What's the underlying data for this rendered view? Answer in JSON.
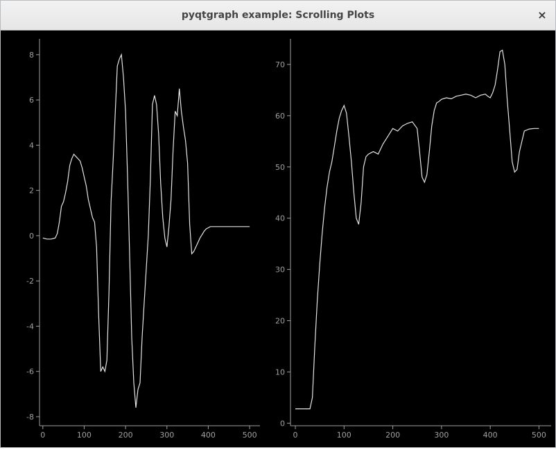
{
  "window": {
    "title": "pyqtgraph example: Scrolling Plots",
    "close_glyph": "×"
  },
  "chart_data": [
    {
      "type": "line",
      "title": "",
      "xlabel": "",
      "ylabel": "",
      "xlim": [
        -8,
        525
      ],
      "ylim": [
        -8.4,
        8.7
      ],
      "xticks": [
        0,
        100,
        200,
        300,
        400,
        500
      ],
      "yticks": [
        -8,
        -6,
        -4,
        -2,
        0,
        2,
        4,
        6,
        8
      ],
      "line_color": "#e6e6e6",
      "grid": false,
      "x": [
        0,
        10,
        20,
        30,
        35,
        40,
        45,
        50,
        55,
        60,
        65,
        70,
        75,
        80,
        85,
        90,
        95,
        100,
        105,
        110,
        115,
        120,
        125,
        130,
        135,
        140,
        145,
        150,
        155,
        160,
        165,
        170,
        175,
        180,
        185,
        190,
        195,
        200,
        205,
        210,
        215,
        220,
        225,
        230,
        235,
        240,
        245,
        250,
        255,
        260,
        265,
        270,
        275,
        280,
        285,
        290,
        295,
        300,
        305,
        310,
        315,
        320,
        325,
        330,
        335,
        340,
        345,
        350,
        355,
        360,
        365,
        370,
        375,
        380,
        385,
        390,
        395,
        400,
        405,
        410,
        415,
        420,
        425,
        430,
        435,
        440,
        445,
        450,
        460,
        470,
        480,
        490,
        500
      ],
      "values": [
        -0.1,
        -0.15,
        -0.15,
        -0.1,
        0.1,
        0.6,
        1.3,
        1.5,
        1.9,
        2.4,
        3.1,
        3.4,
        3.6,
        3.5,
        3.4,
        3.3,
        3.0,
        2.6,
        2.2,
        1.6,
        1.2,
        0.8,
        0.6,
        -0.5,
        -3.5,
        -6.0,
        -5.8,
        -6.0,
        -5.5,
        -2.5,
        1.5,
        3.3,
        5.4,
        7.5,
        7.8,
        8.0,
        7.0,
        5.5,
        2.5,
        -1.0,
        -4.5,
        -6.5,
        -7.6,
        -6.8,
        -6.5,
        -4.5,
        -3.0,
        -1.5,
        0.0,
        2.5,
        5.8,
        6.2,
        5.8,
        4.5,
        2.3,
        0.8,
        -0.1,
        -0.5,
        0.4,
        1.6,
        3.8,
        5.5,
        5.3,
        6.5,
        5.5,
        4.8,
        4.2,
        3.2,
        0.5,
        -0.8,
        -0.7,
        -0.5,
        -0.3,
        -0.1,
        0.05,
        0.2,
        0.3,
        0.35,
        0.4,
        0.4,
        0.4,
        0.4,
        0.4,
        0.4,
        0.4,
        0.4,
        0.4,
        0.4,
        0.4,
        0.4,
        0.4,
        0.4,
        0.4
      ]
    },
    {
      "type": "line",
      "title": "",
      "xlabel": "",
      "ylabel": "",
      "xlim": [
        -10,
        525
      ],
      "ylim": [
        -0.5,
        75
      ],
      "xticks": [
        0,
        100,
        200,
        300,
        400,
        500
      ],
      "yticks": [
        0,
        10,
        20,
        30,
        40,
        50,
        60,
        70
      ],
      "line_color": "#e6e6e6",
      "grid": false,
      "x": [
        0,
        10,
        20,
        30,
        35,
        40,
        45,
        50,
        55,
        60,
        65,
        70,
        75,
        80,
        85,
        90,
        95,
        100,
        105,
        110,
        115,
        120,
        125,
        130,
        135,
        140,
        145,
        150,
        160,
        170,
        180,
        190,
        200,
        210,
        220,
        230,
        240,
        250,
        255,
        260,
        265,
        270,
        275,
        280,
        285,
        290,
        295,
        300,
        310,
        320,
        330,
        340,
        350,
        360,
        370,
        380,
        390,
        395,
        400,
        405,
        410,
        415,
        420,
        425,
        430,
        435,
        440,
        445,
        450,
        455,
        460,
        470,
        480,
        490,
        500
      ],
      "values": [
        2.8,
        2.8,
        2.8,
        2.8,
        5.0,
        15.0,
        24.0,
        31.0,
        37.0,
        42.0,
        46.0,
        49.0,
        51.0,
        54.0,
        57.0,
        59.5,
        61.0,
        62.0,
        60.5,
        56.0,
        51.0,
        45.0,
        40.0,
        38.8,
        43.0,
        50.0,
        52.0,
        52.5,
        53.0,
        52.5,
        54.5,
        56.0,
        57.5,
        57.0,
        58.0,
        58.5,
        58.8,
        57.5,
        53.0,
        48.0,
        47.0,
        48.5,
        53.0,
        58.0,
        61.0,
        62.5,
        62.8,
        63.2,
        63.5,
        63.3,
        63.8,
        64.0,
        64.2,
        64.0,
        63.5,
        64.0,
        64.2,
        63.8,
        63.5,
        64.5,
        66.0,
        69.0,
        72.5,
        72.8,
        70.0,
        63.0,
        57.0,
        51.0,
        49.0,
        49.5,
        53.0,
        57.0,
        57.4,
        57.5,
        57.5
      ]
    }
  ]
}
